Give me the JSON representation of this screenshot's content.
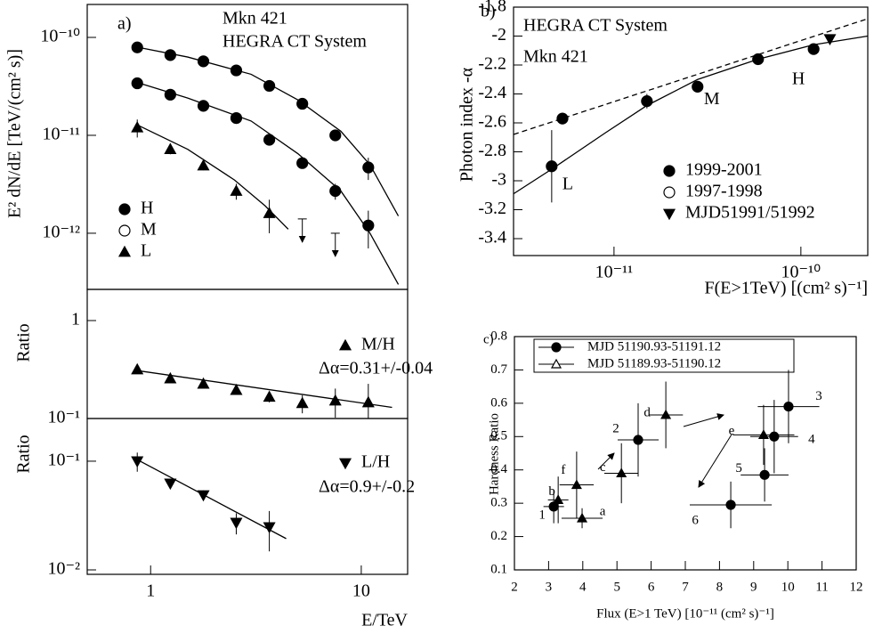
{
  "chart_data": [
    {
      "type": "scatter",
      "panel_label": "a)",
      "xlog": true,
      "ylog": true,
      "ylabel": "E² dN/dE [TeV/(cm² s)]",
      "annotations": [
        "Mkn 421",
        "HEGRA CT System"
      ],
      "xlim": [
        0.5,
        16.6
      ],
      "ylim": [
        2.67e-13,
        2.17e-10
      ],
      "yticks": [
        {
          "value": 1e-10,
          "label": "10⁻¹⁰"
        },
        {
          "value": 1e-11,
          "label": "10⁻¹¹"
        },
        {
          "value": 1e-12,
          "label": "10⁻¹²"
        }
      ],
      "series": [
        {
          "name": "H",
          "marker": "circle",
          "color": "#000",
          "x": [
            0.864,
            1.24,
            1.78,
            2.55,
            3.66,
            5.25,
            7.53,
            10.8
          ],
          "values": [
            7.9e-11,
            6.6e-11,
            5.7e-11,
            4.6e-11,
            3.2e-11,
            2.1e-11,
            1e-11,
            4.7e-12
          ],
          "errors": [
            3e-12,
            2.5e-12,
            2e-12,
            1.5e-12,
            1.2e-12,
            1e-12,
            8e-13,
            1.2e-12
          ],
          "fit": {
            "x": [
              0.85,
              1.5,
              3,
              5,
              8,
              11,
              15
            ],
            "values": [
              8e-11,
              6.3e-11,
              4.2e-11,
              2.3e-11,
              1.1e-11,
              5e-12,
              1.5e-12
            ]
          }
        },
        {
          "name": "M",
          "marker": "open-circle",
          "color": "#000",
          "x": [
            0.864,
            1.24,
            1.78,
            2.55,
            3.66,
            5.25,
            7.53,
            10.8
          ],
          "values": [
            3.4e-11,
            2.6e-11,
            2e-11,
            1.5e-11,
            9e-12,
            5.2e-12,
            2.7e-12,
            1.2e-12
          ],
          "errors": [
            1.5e-12,
            1.2e-12,
            1e-12,
            8e-13,
            6e-13,
            5e-13,
            5e-13,
            5e-13
          ],
          "fit": {
            "x": [
              0.85,
              1.5,
              3,
              5,
              8,
              11,
              15
            ],
            "values": [
              3.5e-11,
              2.4e-11,
              1.4e-11,
              6.5e-12,
              2.7e-12,
              1e-12,
              3e-13
            ]
          }
        },
        {
          "name": "L",
          "marker": "triangle",
          "color": "#000",
          "x": [
            0.864,
            1.24,
            1.78,
            2.55,
            3.66
          ],
          "values": [
            1.2e-11,
            7.2e-12,
            4.9e-12,
            2.7e-12,
            1.6e-12
          ],
          "errors": [
            2.5e-12,
            8e-13,
            5e-13,
            5e-13,
            6e-13
          ],
          "fit": {
            "x": [
              0.85,
              1.5,
              2.5,
              3.5,
              4.5
            ],
            "values": [
              1.3e-11,
              7.2e-12,
              3.5e-12,
              1.9e-12,
              1.1e-12
            ]
          }
        }
      ],
      "upper_limits": {
        "x": [
          5.25,
          7.53
        ],
        "values": [
          1.4e-12,
          1e-12
        ]
      }
    },
    {
      "type": "scatter",
      "xlog": true,
      "ylog": true,
      "ylabel": "Ratio",
      "annotations": [
        "Δα=0.31+/-0.04"
      ],
      "xlim": [
        0.5,
        16.6
      ],
      "ylim": [
        0.1,
        2.08
      ],
      "yticks": [
        1,
        {
          "value": 0.1,
          "label": "10⁻¹"
        }
      ],
      "series": [
        {
          "name": "M/H",
          "marker": "triangle",
          "color": "#000",
          "x": [
            0.864,
            1.24,
            1.78,
            2.55,
            3.66,
            5.25,
            7.53,
            10.8
          ],
          "values": [
            0.316,
            0.256,
            0.226,
            0.195,
            0.166,
            0.143,
            0.152,
            0.146
          ],
          "errors": [
            0.015,
            0.015,
            0.015,
            0.015,
            0.02,
            0.03,
            0.05,
            0.08
          ],
          "fit": {
            "x": [
              0.85,
              14
            ],
            "values": [
              0.31,
              0.13
            ]
          }
        }
      ]
    },
    {
      "type": "scatter",
      "xlog": true,
      "ylog": true,
      "ylabel": "Ratio",
      "xlabel": "E/TeV",
      "annotations": [
        "Δα=0.9+/-0.2"
      ],
      "xlim": [
        0.5,
        16.6
      ],
      "ylim": [
        0.0091,
        0.247
      ],
      "xticks": [
        1,
        10
      ],
      "yticks": [
        {
          "value": 0.1,
          "label": "10⁻¹"
        },
        {
          "value": 0.01,
          "label": "10⁻²"
        }
      ],
      "series": [
        {
          "name": "L/H",
          "marker": "triangle-down",
          "color": "#000",
          "x": [
            0.864,
            1.24,
            1.78,
            2.55,
            3.66
          ],
          "values": [
            0.1,
            0.0624,
            0.0488,
            0.0272,
            0.0248
          ],
          "errors": [
            0.02,
            0.006,
            0.005,
            0.006,
            0.01
          ],
          "fit": {
            "x": [
              0.85,
              4.4
            ],
            "values": [
              0.105,
              0.0194
            ]
          }
        }
      ]
    },
    {
      "type": "scatter",
      "panel_label": "b)",
      "xlog": true,
      "ylog": false,
      "xlabel": "F(E>1TeV) [(cm² s)⁻¹]",
      "ylabel": "Photon index -α",
      "annotations": [
        "HEGRA CT System",
        "Mkn 421"
      ],
      "xlim": [
        2.9e-12,
        2.28e-10
      ],
      "ylim": [
        -3.517,
        -1.8
      ],
      "xticks": [
        {
          "value": 1e-11,
          "label": "10⁻¹¹"
        },
        {
          "value": 1e-10,
          "label": "10⁻¹⁰"
        }
      ],
      "yticks": [
        -3.4,
        -3.2,
        -3,
        -2.8,
        -2.6,
        -2.4,
        -2.2,
        -2,
        -1.8
      ],
      "series": [
        {
          "name": "1999-2001",
          "marker": "circle",
          "color": "#000",
          "x": [
            4.64e-12,
            1.5e-11,
            2.8e-11,
            5.9e-11,
            1.17e-10
          ],
          "values": [
            -2.9,
            -2.45,
            -2.35,
            -2.16,
            -2.09
          ],
          "errors": [
            0.25,
            0.05,
            0.04,
            0.03,
            0.03
          ],
          "point_labels": [
            "L",
            null,
            "M",
            null,
            "H"
          ]
        },
        {
          "name": "1997-1998",
          "marker": "open-circle",
          "color": "#000",
          "x": [
            5.3e-12
          ],
          "values": [
            -2.57
          ],
          "errors": [
            0.04
          ]
        },
        {
          "name": "MJD51991/51992",
          "marker": "triangle-down",
          "color": "#000",
          "x": [
            1.43e-10
          ],
          "values": [
            -2.02
          ],
          "errors": [
            0.03
          ]
        }
      ],
      "curves": [
        {
          "style": "solid",
          "x": [
            2.9e-12,
            4.64e-12,
            8.96e-12,
            1.5e-11,
            2.8e-11,
            5.9e-11,
            1.17e-10,
            2.28e-10
          ],
          "values": [
            -3.09,
            -2.92,
            -2.67,
            -2.48,
            -2.3,
            -2.16,
            -2.06,
            -2.0
          ]
        },
        {
          "style": "dashed",
          "x": [
            2.9e-12,
            2.28e-10
          ],
          "values": [
            -2.68,
            -1.88
          ]
        }
      ]
    },
    {
      "type": "scatter",
      "panel_label": "c)",
      "xlog": false,
      "ylog": false,
      "xlabel": "Flux (E>1 TeV) [10⁻¹¹ (cm² s)⁻¹]",
      "ylabel": "Hardness Ratio",
      "xlim": [
        2,
        12
      ],
      "ylim": [
        0.1,
        0.8
      ],
      "xticks": [
        2,
        3,
        4,
        5,
        6,
        7,
        8,
        9,
        10,
        11,
        12
      ],
      "yticks": [
        0.1,
        0.2,
        0.3,
        0.4,
        0.5,
        0.6,
        0.7,
        0.8
      ],
      "series": [
        {
          "name": "MJD 51190.93-51191.12",
          "marker": "circle",
          "color": "#000",
          "x": [
            3.15,
            5.62,
            10.02,
            9.6,
            9.32,
            8.33
          ],
          "values": [
            0.29,
            0.49,
            0.59,
            0.5,
            0.385,
            0.295
          ],
          "errors": [
            0.05,
            0.11,
            0.11,
            0.11,
            0.08,
            0.07
          ],
          "x_errors": [
            0.3,
            0.6,
            0.9,
            0.7,
            0.7,
            1.2
          ],
          "point_labels": [
            "1",
            "2",
            "3",
            "4",
            "5",
            "6"
          ]
        },
        {
          "name": "MJD 51189.93-51190.12",
          "marker": "open-triangle",
          "color": "#000",
          "x": [
            3.98,
            3.28,
            5.13,
            6.43,
            9.29,
            3.82
          ],
          "values": [
            0.255,
            0.31,
            0.39,
            0.565,
            0.505,
            0.355
          ],
          "errors": [
            0.03,
            0.07,
            0.09,
            0.1,
            0.09,
            0.1
          ],
          "x_errors": [
            0.6,
            0.3,
            0.5,
            0.5,
            0.9,
            0.5
          ],
          "point_labels": [
            "a",
            "b",
            "c",
            "d",
            "e",
            "f"
          ]
        }
      ]
    }
  ]
}
